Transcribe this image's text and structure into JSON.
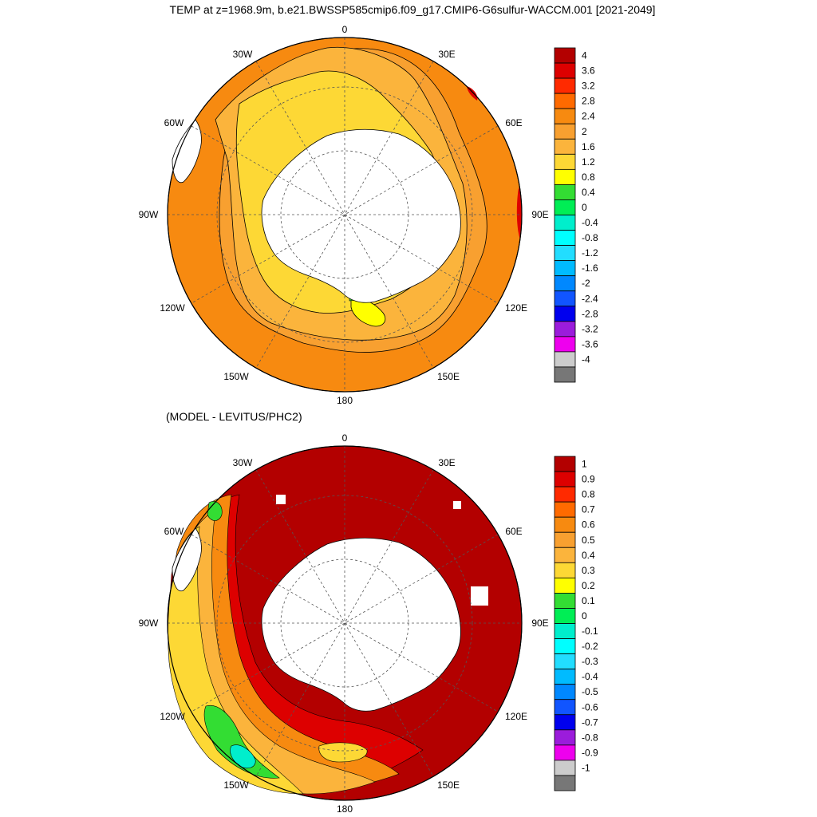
{
  "title": "TEMP at z=1968.9m, b.e21.BWSSP585cmip6.f09_g17.CMIP6-G6sulfur-WACCM.001 [2021-2049]",
  "subtitle": "(MODEL - LEVITUS/PHC2)",
  "longitude_labels": [
    "0",
    "30E",
    "60E",
    "90E",
    "120E",
    "150E",
    "180",
    "150W",
    "120W",
    "90W",
    "60W",
    "30W"
  ],
  "colorbar_top": {
    "labels": [
      "4",
      "3.6",
      "3.2",
      "2.8",
      "2.4",
      "2",
      "1.6",
      "1.2",
      "0.8",
      "0.4",
      "0",
      "-0.4",
      "-0.8",
      "-1.2",
      "-1.6",
      "-2",
      "-2.4",
      "-2.8",
      "-3.2",
      "-3.6",
      "-4"
    ],
    "colors": [
      "#b30000",
      "#dd0000",
      "#ff2a00",
      "#ff6a00",
      "#f78a10",
      "#f8a030",
      "#fbb43c",
      "#fdd835",
      "#ffff00",
      "#33dd33",
      "#00ee55",
      "#00eecc",
      "#00ffff",
      "#22ddff",
      "#00bbff",
      "#0088ff",
      "#1155ff",
      "#0000ee",
      "#9b1cdb",
      "#ee00ee",
      "#cccccc",
      "#777777"
    ]
  },
  "colorbar_bottom": {
    "labels": [
      "1",
      "0.9",
      "0.8",
      "0.7",
      "0.6",
      "0.5",
      "0.4",
      "0.3",
      "0.2",
      "0.1",
      "0",
      "-0.1",
      "-0.2",
      "-0.3",
      "-0.4",
      "-0.5",
      "-0.6",
      "-0.7",
      "-0.8",
      "-0.9",
      "-1"
    ],
    "colors": [
      "#b30000",
      "#dd0000",
      "#ff2a00",
      "#ff6a00",
      "#f78a10",
      "#f8a030",
      "#fbb43c",
      "#fdd835",
      "#ffff00",
      "#33dd33",
      "#00ee55",
      "#00eecc",
      "#00ffff",
      "#22ddff",
      "#00bbff",
      "#0088ff",
      "#1155ff",
      "#0000ee",
      "#9b1cdb",
      "#ee00ee",
      "#cccccc",
      "#777777"
    ]
  },
  "colors": {
    "land": "#ffffff",
    "outline": "#000000",
    "grid": "#555555"
  }
}
